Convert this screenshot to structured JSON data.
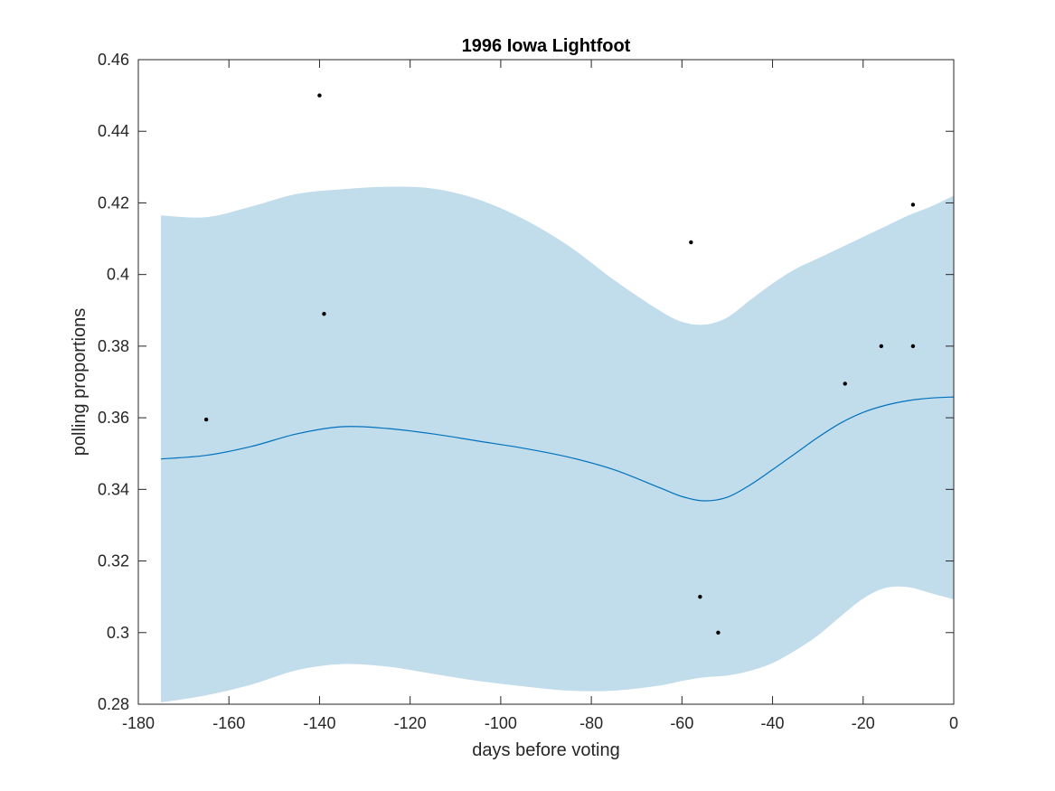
{
  "chart_data": {
    "type": "line",
    "title": "1996 Iowa Lightfoot",
    "xlabel": "days before voting",
    "ylabel": "polling proportions",
    "xlim": [
      -180,
      0
    ],
    "ylim": [
      0.28,
      0.46
    ],
    "xticks": [
      -180,
      -160,
      -140,
      -120,
      -100,
      -80,
      -60,
      -40,
      -20,
      0
    ],
    "xtick_labels": [
      "-180",
      "-160",
      "-140",
      "-120",
      "-100",
      "-80",
      "-60",
      "-40",
      "-20",
      "0"
    ],
    "yticks": [
      0.28,
      0.3,
      0.32,
      0.34,
      0.36,
      0.38,
      0.4,
      0.42,
      0.44,
      0.46
    ],
    "ytick_labels": [
      "0.28",
      "0.3",
      "0.32",
      "0.34",
      "0.36",
      "0.38",
      "0.4",
      "0.42",
      "0.44",
      "0.46"
    ],
    "grid": false,
    "colors": {
      "band": "#c1dceb",
      "mean_line": "#0072bd",
      "points": "#000000",
      "axes": "#262626"
    },
    "series": [
      {
        "type": "scatter",
        "x": [
          -165,
          -140,
          -139,
          -58,
          -56,
          -52,
          -24,
          -16,
          -9,
          -9
        ],
        "y": [
          0.3595,
          0.45,
          0.389,
          0.409,
          0.31,
          0.3,
          0.3695,
          0.38,
          0.38,
          0.4195
        ]
      },
      {
        "type": "line",
        "x": [
          -175,
          -165,
          -155,
          -145,
          -135,
          -125,
          -115,
          -105,
          -95,
          -85,
          -75,
          -65,
          -60,
          -55,
          -50,
          -45,
          -40,
          -35,
          -30,
          -25,
          -20,
          -15,
          -10,
          -5,
          0
        ],
        "y": [
          0.3485,
          0.3495,
          0.352,
          0.3555,
          0.3575,
          0.357,
          0.3555,
          0.3535,
          0.3515,
          0.349,
          0.3455,
          0.3405,
          0.338,
          0.3368,
          0.3378,
          0.3412,
          0.3455,
          0.35,
          0.3545,
          0.3585,
          0.3615,
          0.3635,
          0.3648,
          0.3655,
          0.3658
        ]
      },
      {
        "type": "area",
        "x": [
          -175,
          -165,
          -155,
          -145,
          -135,
          -125,
          -115,
          -105,
          -95,
          -85,
          -75,
          -65,
          -60,
          -55,
          -50,
          -45,
          -40,
          -35,
          -30,
          -25,
          -20,
          -15,
          -10,
          -5,
          0
        ],
        "y_upper": [
          0.4165,
          0.416,
          0.419,
          0.4225,
          0.4238,
          0.4245,
          0.424,
          0.421,
          0.4155,
          0.408,
          0.3985,
          0.39,
          0.3868,
          0.386,
          0.388,
          0.3928,
          0.3975,
          0.4015,
          0.4045,
          0.4075,
          0.4105,
          0.4135,
          0.4165,
          0.419,
          0.422
        ],
        "y_lower": [
          0.2805,
          0.2825,
          0.2855,
          0.2895,
          0.2912,
          0.2905,
          0.2885,
          0.2865,
          0.285,
          0.2838,
          0.2838,
          0.2852,
          0.2865,
          0.2875,
          0.288,
          0.2893,
          0.2915,
          0.295,
          0.2992,
          0.3045,
          0.3095,
          0.3125,
          0.3127,
          0.311,
          0.3093
        ]
      }
    ]
  }
}
